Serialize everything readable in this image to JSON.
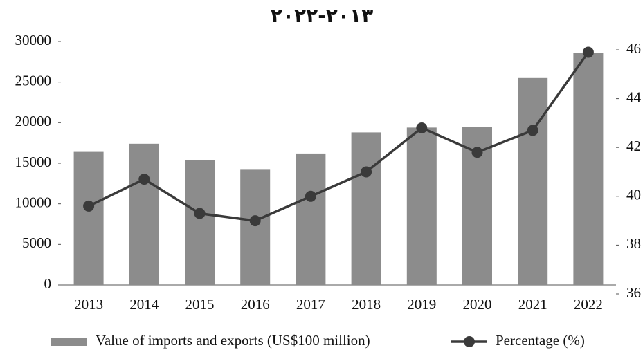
{
  "chart_data": {
    "type": "bar-line",
    "title": "۲۰۲۲-۲۰۱۳",
    "categories": [
      "2013",
      "2014",
      "2015",
      "2016",
      "2017",
      "2018",
      "2019",
      "2020",
      "2021",
      "2022"
    ],
    "series": [
      {
        "name": "Value of imports and exports (US$100 million)",
        "type": "bar",
        "color": "#8c8c8c",
        "values": [
          16400,
          17400,
          15400,
          14200,
          16200,
          18800,
          19400,
          19500,
          25500,
          28600
        ]
      },
      {
        "name": "Percentage (%)",
        "type": "line",
        "color": "#3a3a3a",
        "axis": "y2",
        "values": [
          39.6,
          40.7,
          39.3,
          39.0,
          40.0,
          41.0,
          42.8,
          41.8,
          42.7,
          45.9
        ]
      }
    ],
    "ylim": [
      0,
      30000
    ],
    "yticks": [
      0,
      5000,
      10000,
      15000,
      20000,
      25000,
      30000
    ],
    "y2lim": [
      36,
      46
    ],
    "y2ticks": [
      36,
      38,
      40,
      42,
      44,
      46
    ],
    "grid": false,
    "legend": "bottom"
  }
}
